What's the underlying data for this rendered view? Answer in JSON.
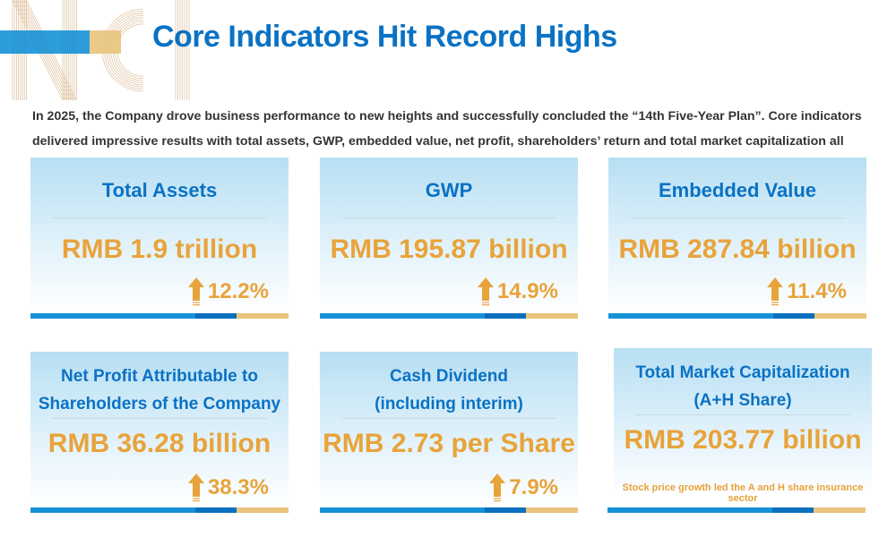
{
  "header": {
    "logo_text": "NCI",
    "title": "Core Indicators Hit Record Highs"
  },
  "intro": "In 2025, the Company drove business performance to new heights and successfully concluded the “14th Five-Year Plan”. Core indicators delivered impressive results with total assets, GWP, embedded value, net profit, shareholders’ return and total market capitalization all reaching historic highs.",
  "colors": {
    "title": "#0a72c4",
    "value": "#e8a33a",
    "bar_blue": "#1591d6",
    "bar_dark": "#0b6fbf",
    "bar_tan": "#e9c47c"
  },
  "cards": [
    {
      "title": "Total Assets",
      "value": "RMB 1.9 trillion",
      "growth": "12.2%",
      "icon": "up-arrow-icon"
    },
    {
      "title": "GWP",
      "value": "RMB 195.87 billion",
      "growth": "14.9%",
      "icon": "up-arrow-icon"
    },
    {
      "title": "Embedded Value",
      "value": "RMB 287.84 billion",
      "growth": "11.4%",
      "icon": "up-arrow-icon"
    },
    {
      "title_line1": "Net Profit Attributable to",
      "title_line2": "Shareholders of the Company",
      "value": "RMB 36.28 billion",
      "growth": "38.3%",
      "icon": "up-arrow-icon"
    },
    {
      "title_line1": "Cash Dividend",
      "title_line2": "(including interim)",
      "value": "RMB 2.73 per Share",
      "growth": "7.9%",
      "icon": "up-arrow-icon"
    },
    {
      "title_line1": "Total Market Capitalization",
      "title_line2": "(A+H Share)",
      "value": "RMB 203.77 billion",
      "note": "Stock price growth led the A and H share insurance sector"
    }
  ]
}
